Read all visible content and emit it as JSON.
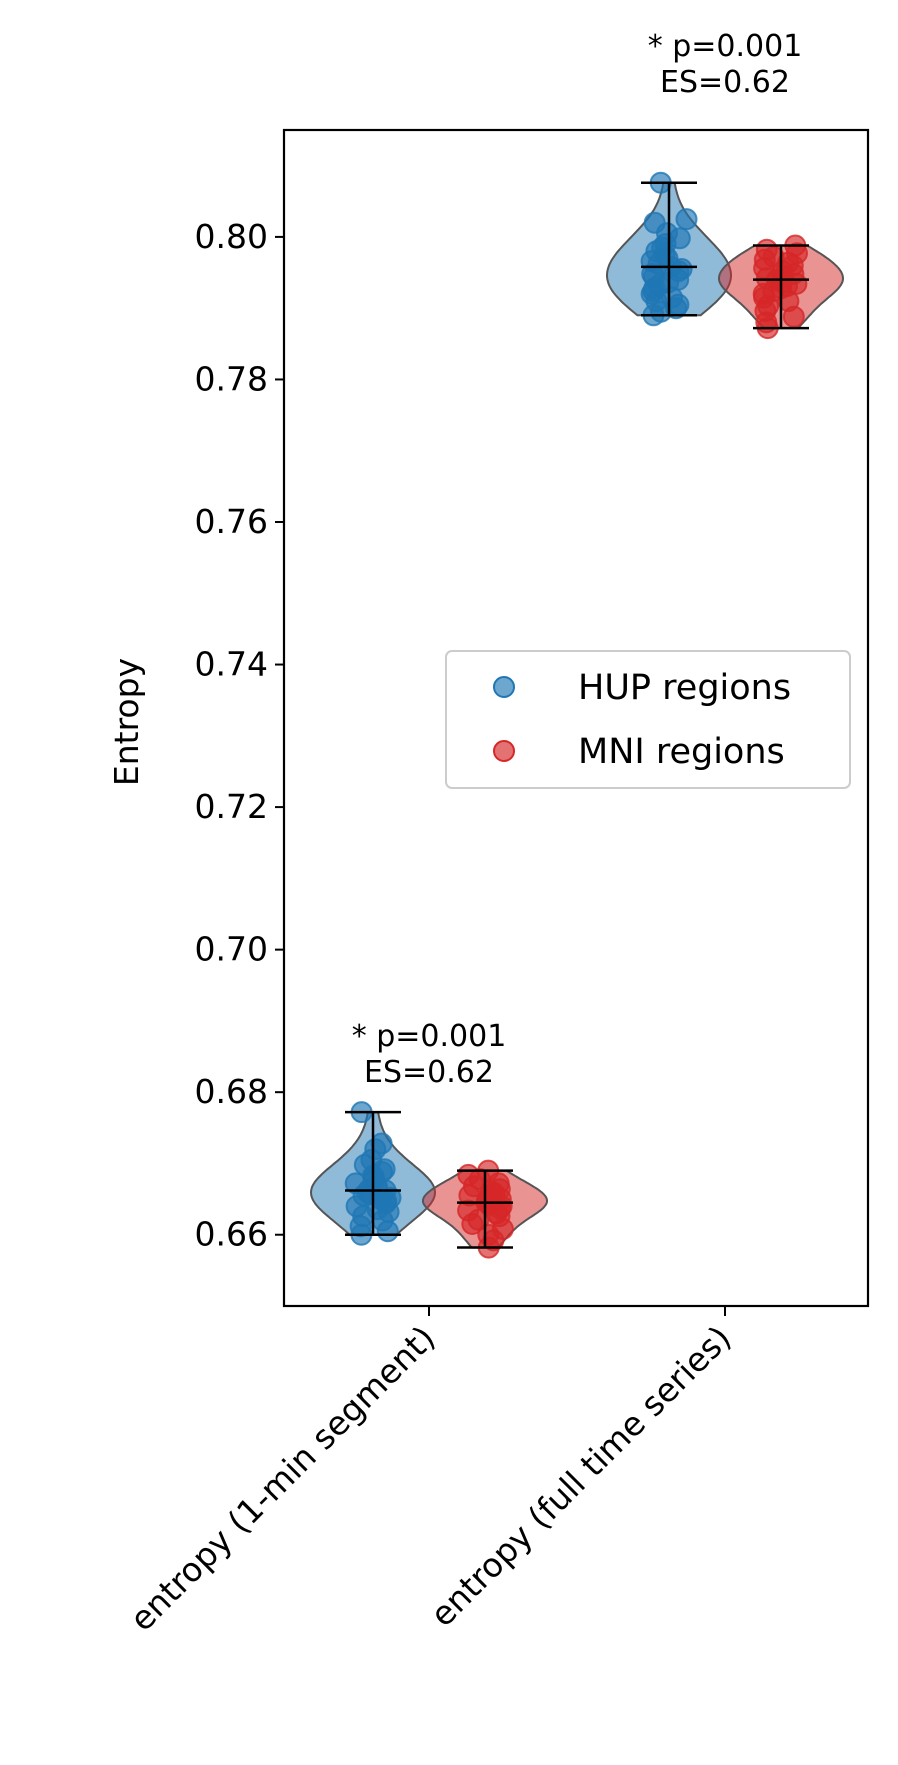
{
  "chart_data": {
    "type": "violin",
    "ylabel": "Entropy",
    "ylim": [
      0.65,
      0.815
    ],
    "yticks": [
      0.66,
      0.68,
      0.7,
      0.72,
      0.74,
      0.76,
      0.78,
      0.8
    ],
    "ytick_labels": [
      "0.66",
      "0.68",
      "0.70",
      "0.72",
      "0.74",
      "0.76",
      "0.78",
      "0.80"
    ],
    "categories": [
      "entropy (1-min segment)",
      "entropy (full time series)"
    ],
    "legend": {
      "position": "center-right",
      "entries": [
        "HUP regions",
        "MNI regions"
      ]
    },
    "series": [
      {
        "name": "HUP regions",
        "color": "#1f77b4",
        "groups": [
          {
            "category": "entropy (1-min segment)",
            "min": 0.66,
            "max": 0.6772,
            "mean": 0.6662,
            "median": 0.6665,
            "points": [
              0.6772,
              0.6728,
              0.672,
              0.6705,
              0.6698,
              0.6692,
              0.6688,
              0.6683,
              0.668,
              0.6676,
              0.6672,
              0.6669,
              0.6667,
              0.6664,
              0.6662,
              0.666,
              0.6657,
              0.6655,
              0.6652,
              0.665,
              0.6647,
              0.6644,
              0.664,
              0.6636,
              0.6632,
              0.6626,
              0.662,
              0.6612,
              0.6605,
              0.66
            ]
          },
          {
            "category": "entropy (full time series)",
            "min": 0.789,
            "max": 0.8076,
            "mean": 0.7958,
            "median": 0.7955,
            "points": [
              0.8076,
              0.8025,
              0.802,
              0.8005,
              0.7998,
              0.799,
              0.7985,
              0.798,
              0.7975,
              0.797,
              0.7966,
              0.7962,
              0.7958,
              0.7955,
              0.7952,
              0.7948,
              0.7944,
              0.794,
              0.7936,
              0.7932,
              0.7928,
              0.7924,
              0.792,
              0.7915,
              0.791,
              0.7905,
              0.79,
              0.7895,
              0.789
            ]
          }
        ]
      },
      {
        "name": "MNI regions",
        "color": "#d62728",
        "groups": [
          {
            "category": "entropy (1-min segment)",
            "min": 0.6582,
            "max": 0.669,
            "mean": 0.6645,
            "median": 0.6647,
            "points": [
              0.669,
              0.6684,
              0.6678,
              0.6672,
              0.6668,
              0.6664,
              0.6661,
              0.6658,
              0.6655,
              0.6652,
              0.665,
              0.6648,
              0.6646,
              0.6644,
              0.6642,
              0.664,
              0.6637,
              0.6634,
              0.663,
              0.6626,
              0.6621,
              0.6615,
              0.6608,
              0.66,
              0.6592,
              0.6582
            ]
          },
          {
            "category": "entropy (full time series)",
            "min": 0.7872,
            "max": 0.7988,
            "mean": 0.794,
            "median": 0.7942,
            "points": [
              0.7988,
              0.7982,
              0.7977,
              0.7972,
              0.7968,
              0.7964,
              0.796,
              0.7956,
              0.7952,
              0.7948,
              0.7945,
              0.7942,
              0.794,
              0.7937,
              0.7934,
              0.7931,
              0.7928,
              0.7924,
              0.792,
              0.7915,
              0.791,
              0.7903,
              0.7896,
              0.7888,
              0.788,
              0.7872
            ]
          }
        ]
      }
    ],
    "annotations": [
      {
        "category": "entropy (1-min segment)",
        "line1": "* p=0.001",
        "line2": "ES=0.62"
      },
      {
        "category": "entropy (full time series)",
        "line1": "* p=0.001",
        "line2": "ES=0.62"
      }
    ]
  }
}
